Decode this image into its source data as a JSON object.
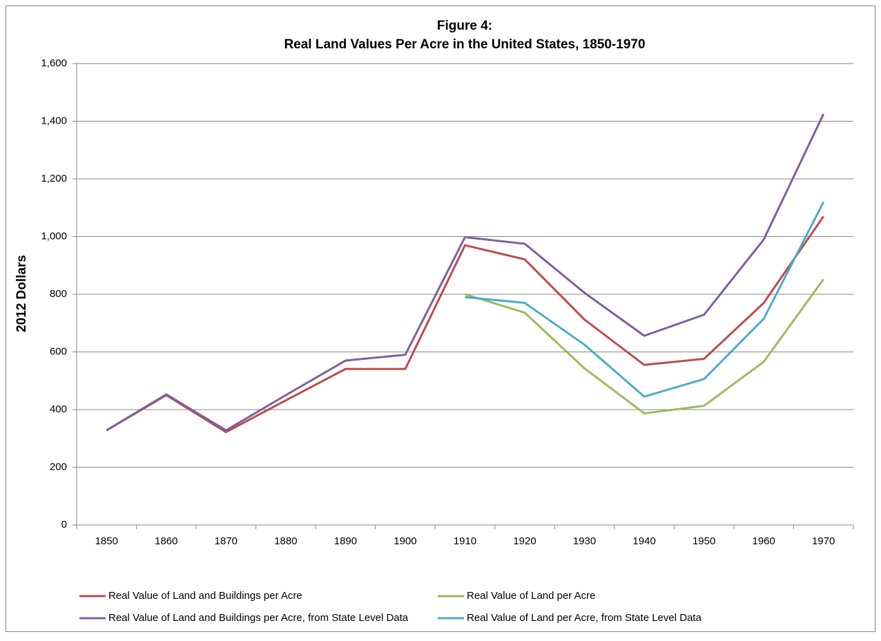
{
  "chart_data": {
    "type": "line",
    "title": "Figure 4:",
    "subtitle": "Real Land Values Per Acre in the United States, 1850-1970",
    "y_label": "2012 Dollars",
    "categories": [
      "1850",
      "1860",
      "1870",
      "1880",
      "1890",
      "1900",
      "1910",
      "1920",
      "1930",
      "1940",
      "1950",
      "1960",
      "1970"
    ],
    "series": [
      {
        "name": "Real Value of Land and Buildings per Acre",
        "color": "#be4b48",
        "values": [
          328,
          450,
          322,
          432,
          541,
          541,
          970,
          921,
          712,
          555,
          576,
          770,
          1070
        ]
      },
      {
        "name": "Real Value of Land per Acre",
        "color": "#9bbb59",
        "values": [
          null,
          null,
          null,
          null,
          null,
          null,
          800,
          736,
          543,
          387,
          413,
          566,
          852
        ]
      },
      {
        "name": "Real Value of Land and Buildings per Acre, from State Level Data",
        "color": "#7d5fa0",
        "values": [
          328,
          453,
          328,
          450,
          570,
          590,
          998,
          975,
          805,
          656,
          729,
          990,
          1425
        ]
      },
      {
        "name": "Real Value of Land per Acre, from State Level Data",
        "color": "#4bacc6",
        "values": [
          null,
          null,
          null,
          null,
          null,
          null,
          790,
          770,
          625,
          445,
          506,
          715,
          1120
        ]
      }
    ],
    "ylim": [
      0,
      1600
    ],
    "yticks": [
      0,
      200,
      400,
      600,
      800,
      {
        "value": 1000,
        "label": "1,000"
      },
      {
        "value": 1200,
        "label": "1,200"
      },
      {
        "value": 1400,
        "label": "1,400"
      },
      {
        "value": 1600,
        "label": "1,600"
      }
    ],
    "grid": true,
    "legend": "bottom"
  }
}
